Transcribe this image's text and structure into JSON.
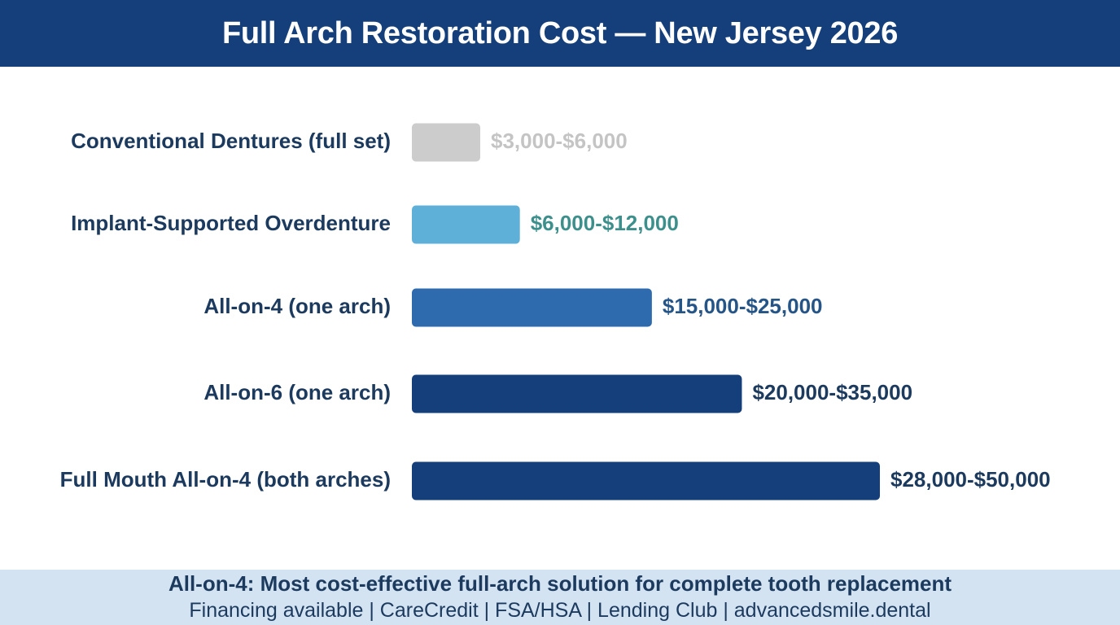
{
  "header": {
    "title": "Full Arch Restoration Cost — New Jersey 2026"
  },
  "chart_data": {
    "type": "bar",
    "orientation": "horizontal",
    "title": "Full Arch Restoration Cost — New Jersey 2026",
    "xlabel": "",
    "ylabel": "",
    "grid": false,
    "categories": [
      "Conventional Dentures (full set)",
      "Implant-Supported Overdenture",
      "All-on-4 (one arch)",
      "All-on-6 (one arch)",
      "Full Mouth All-on-4 (both arches)"
    ],
    "series": [
      {
        "low": [
          3000,
          6000,
          15000,
          20000,
          28000
        ],
        "high": [
          6000,
          12000,
          25000,
          35000,
          50000
        ],
        "values": [
          6000,
          12000,
          25000,
          35000,
          50000
        ],
        "labels": [
          "$3,000-$6,000",
          "$6,000-$12,000",
          "$15,000-$25,000",
          "$20,000-$35,000",
          "$28,000-$50,000"
        ],
        "colors": [
          "#cccccc",
          "#5fb0d8",
          "#2e6aae",
          "#153f7a",
          "#153f7a"
        ],
        "label_colors": [
          "#c4c4c4",
          "#3d8f8c",
          "#255487",
          "#1c3a5e",
          "#1c3a5e"
        ]
      }
    ]
  },
  "footer": {
    "headline": "All-on-4: Most cost-effective full-arch solution for complete tooth replacement",
    "subline": "Financing available | CareCredit | FSA/HSA | Lending Club | advancedsmile.dental"
  }
}
